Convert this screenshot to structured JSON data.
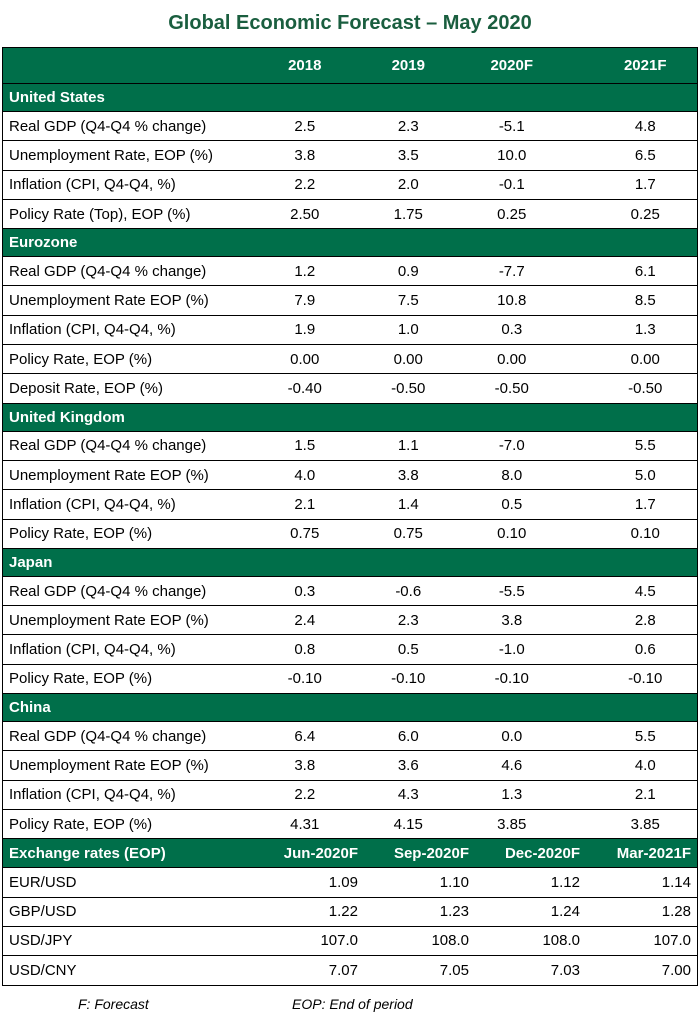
{
  "title": "Global Economic Forecast – May 2020",
  "header": {
    "label": "",
    "years": [
      "2018",
      "2019",
      "2020F",
      "2021F"
    ]
  },
  "sections": [
    {
      "name": "United States",
      "rows": [
        {
          "label": "Real GDP (Q4-Q4 % change)",
          "values": [
            "2.5",
            "2.3",
            "-5.1",
            "4.8"
          ]
        },
        {
          "label": "Unemployment Rate, EOP (%)",
          "values": [
            "3.8",
            "3.5",
            "10.0",
            "6.5"
          ]
        },
        {
          "label": "Inflation (CPI, Q4-Q4, %)",
          "values": [
            "2.2",
            "2.0",
            "-0.1",
            "1.7"
          ]
        },
        {
          "label": "Policy Rate (Top), EOP (%)",
          "values": [
            "2.50",
            "1.75",
            "0.25",
            "0.25"
          ]
        }
      ]
    },
    {
      "name": "Eurozone",
      "rows": [
        {
          "label": "Real GDP (Q4-Q4 % change)",
          "values": [
            "1.2",
            "0.9",
            "-7.7",
            "6.1"
          ]
        },
        {
          "label": "Unemployment Rate EOP (%)",
          "values": [
            "7.9",
            "7.5",
            "10.8",
            "8.5"
          ]
        },
        {
          "label": "Inflation (CPI, Q4-Q4, %)",
          "values": [
            "1.9",
            "1.0",
            "0.3",
            "1.3"
          ]
        },
        {
          "label": "Policy Rate, EOP (%)",
          "values": [
            "0.00",
            "0.00",
            "0.00",
            "0.00"
          ]
        },
        {
          "label": "Deposit Rate, EOP (%)",
          "values": [
            "-0.40",
            "-0.50",
            "-0.50",
            "-0.50"
          ]
        }
      ]
    },
    {
      "name": "United Kingdom",
      "rows": [
        {
          "label": "Real GDP (Q4-Q4 % change)",
          "values": [
            "1.5",
            "1.1",
            "-7.0",
            "5.5"
          ]
        },
        {
          "label": "Unemployment Rate EOP (%)",
          "values": [
            "4.0",
            "3.8",
            "8.0",
            "5.0"
          ]
        },
        {
          "label": "Inflation (CPI, Q4-Q4, %)",
          "values": [
            "2.1",
            "1.4",
            "0.5",
            "1.7"
          ]
        },
        {
          "label": "Policy Rate, EOP (%)",
          "values": [
            "0.75",
            "0.75",
            "0.10",
            "0.10"
          ]
        }
      ]
    },
    {
      "name": "Japan",
      "rows": [
        {
          "label": "Real GDP (Q4-Q4 % change)",
          "values": [
            "0.3",
            "-0.6",
            "-5.5",
            "4.5"
          ]
        },
        {
          "label": "Unemployment Rate EOP (%)",
          "values": [
            "2.4",
            "2.3",
            "3.8",
            "2.8"
          ]
        },
        {
          "label": "Inflation (CPI, Q4-Q4, %)",
          "values": [
            "0.8",
            "0.5",
            "-1.0",
            "0.6"
          ]
        },
        {
          "label": "Policy Rate, EOP (%)",
          "values": [
            "-0.10",
            "-0.10",
            "-0.10",
            "-0.10"
          ]
        }
      ]
    },
    {
      "name": "China",
      "rows": [
        {
          "label": "Real GDP (Q4-Q4 % change)",
          "values": [
            "6.4",
            "6.0",
            "0.0",
            "5.5"
          ]
        },
        {
          "label": "Unemployment Rate EOP (%)",
          "values": [
            "3.8",
            "3.6",
            "4.6",
            "4.0"
          ]
        },
        {
          "label": "Inflation (CPI, Q4-Q4, %)",
          "values": [
            "2.2",
            "4.3",
            "1.3",
            "2.1"
          ]
        },
        {
          "label": "Policy Rate, EOP (%)",
          "values": [
            "4.31",
            "4.15",
            "3.85",
            "3.85"
          ]
        }
      ]
    }
  ],
  "fx": {
    "label": "Exchange rates (EOP)",
    "periods": [
      "Jun-2020F",
      "Sep-2020F",
      "Dec-2020F",
      "Mar-2021F"
    ],
    "rows": [
      {
        "label": "EUR/USD",
        "values": [
          "1.09",
          "1.10",
          "1.12",
          "1.14"
        ]
      },
      {
        "label": "GBP/USD",
        "values": [
          "1.22",
          "1.23",
          "1.24",
          "1.28"
        ]
      },
      {
        "label": "USD/JPY",
        "values": [
          "107.0",
          "108.0",
          "108.0",
          "107.0"
        ]
      },
      {
        "label": "USD/CNY",
        "values": [
          "7.07",
          "7.05",
          "7.03",
          "7.00"
        ]
      }
    ]
  },
  "footnotes": {
    "forecast": "F: Forecast",
    "eop": "EOP: End of period"
  },
  "colors": {
    "header_bg": "#006f4a",
    "title": "#1a5e3f"
  }
}
